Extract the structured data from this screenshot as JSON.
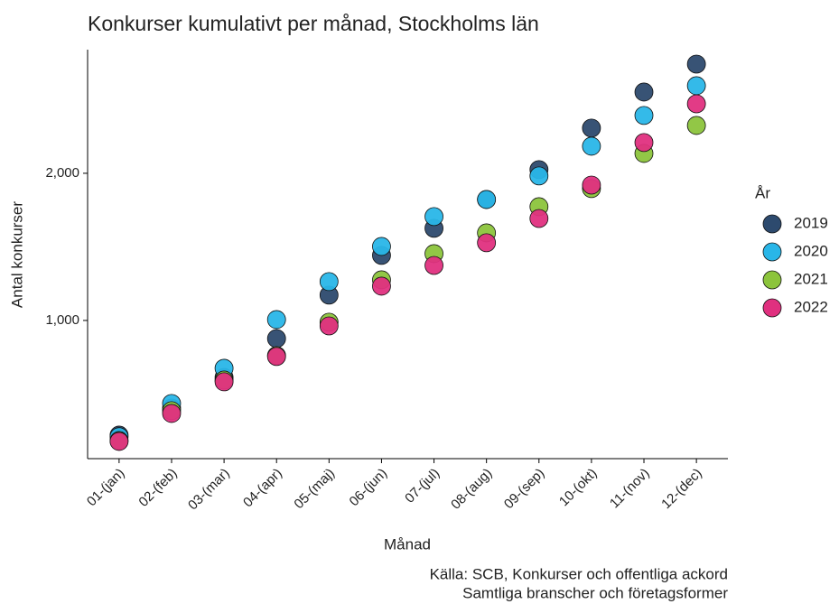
{
  "chart_data": {
    "type": "scatter",
    "title": "Konkurser kumulativt per månad, Stockholms län",
    "x_label": "Månad",
    "y_label": "Antal konkurser",
    "caption": [
      "Källa: SCB, Konkurser och offentliga ackord",
      "Samtliga branscher och företagsformer"
    ],
    "legend_title": "År",
    "legend_position": "right",
    "categories": [
      "01-(jan)",
      "02-(feb)",
      "03-(mar)",
      "04-(apr)",
      "05-(maj)",
      "06-(jun)",
      "07-(jul)",
      "08-(aug)",
      "09-(sep)",
      "10-(okt)",
      "11-(nov)",
      "12-(dec)"
    ],
    "series": [
      {
        "name": "2019",
        "color": "#2d4a6e",
        "values": [
          221,
          405,
          613,
          877,
          1172,
          1442,
          1626,
          1822,
          2025,
          2307,
          2552,
          2742
        ]
      },
      {
        "name": "2020",
        "color": "#29b6e8",
        "values": [
          210,
          436,
          675,
          1006,
          1264,
          1503,
          1706,
          1822,
          1982,
          2184,
          2393,
          2595
        ]
      },
      {
        "name": "2021",
        "color": "#8cc43c",
        "values": [
          184,
          387,
          595,
          761,
          988,
          1276,
          1454,
          1595,
          1773,
          1896,
          2135,
          2325
        ]
      },
      {
        "name": "2022",
        "color": "#e0307f",
        "values": [
          178,
          368,
          583,
          755,
          963,
          1233,
          1374,
          1528,
          1693,
          1920,
          2209,
          2472
        ]
      }
    ],
    "ylim": [
      61,
      2840
    ],
    "yticks": [
      {
        "value": 1000,
        "label": "1,000"
      },
      {
        "value": 2000,
        "label": "2,000"
      }
    ],
    "grid": false
  }
}
